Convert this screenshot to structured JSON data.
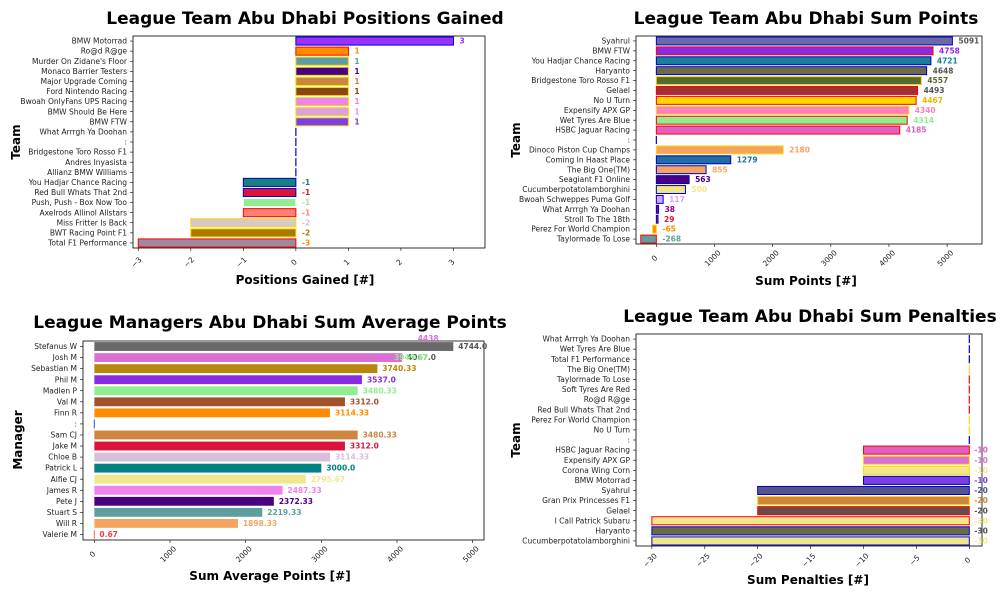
{
  "chart_data": [
    {
      "type": "bar",
      "orientation": "horizontal",
      "title": "League Team Abu Dhabi Positions Gained",
      "xlabel": "Positions Gained [#]",
      "ylabel": "Team",
      "xlim": [
        -3.1,
        3.6
      ],
      "xticks": [
        -3,
        -2,
        -1,
        0,
        1,
        2,
        3
      ],
      "xtick_labels": [
        "−3",
        "−2",
        "−1",
        "0",
        "1",
        "2",
        "3"
      ],
      "categories": [
        "BMW Motorrad",
        "Ro@d R@ge",
        "Murder On Zidane's Floor",
        "Monaco Barrier Testers",
        "Major Upgrade Coming",
        "Ford Nintendo Racing",
        "Bwoah OnlyFans UPS Racing",
        "BMW Should Be Here",
        "BMW FTW",
        "What Arrrgh Ya Doohan",
        ":",
        "Bridgestone Toro Rosso F1",
        "Andres Inyasista",
        "Allianz BMW Williams",
        "You Hadjar Chance Racing",
        "Red Bull Whats That 2nd",
        "Push, Push - Box Now Too",
        "Axelrods Allinol Allstars",
        "Miss Fritter Is Back",
        "BWT Racing Point F1",
        "Total F1 Performance"
      ],
      "values": [
        3,
        1,
        1,
        1,
        1,
        1,
        1,
        1,
        1,
        0,
        0,
        0,
        0,
        0,
        -1,
        -1,
        -1,
        -1,
        -2,
        -2,
        -3
      ],
      "value_labels": [
        "3",
        "1",
        "1",
        "1",
        "1",
        "1",
        "1",
        "1",
        "1",
        "",
        "",
        "",
        "",
        "",
        "-1",
        "-1",
        "-1",
        "-1",
        "-2",
        "-2",
        "-3"
      ],
      "fill_colors": [
        "#9b30ff",
        "#ff8c00",
        "#5f9ea0",
        "#4b0082",
        "#cd853f",
        "#8b4513",
        "#ee82ee",
        "#dda0dd",
        "#7b3fe4",
        "#4169e1",
        "#4169e1",
        "#4169e1",
        "#4169e1",
        "#4169e1",
        "#1a7f7f",
        "#dc143c",
        "#90ee90",
        "#fa8072",
        "#d8c8c8",
        "#a67c00",
        "#9b8aa0"
      ],
      "edge_colors": [
        "#0000cd",
        "#ff0000",
        "#ffd700",
        "#ffd700",
        "#ffd700",
        "#ffd700",
        "#ffd700",
        "#ffd700",
        "#ffd700",
        "#0000cd",
        "#0000cd",
        "#0000cd",
        "#0000cd",
        "#0000cd",
        "#0000cd",
        "#0000cd",
        "#ffffff",
        "#ff0000",
        "#ffd700",
        "#ffd700",
        "#ff0000"
      ],
      "label_colors": [
        "#9b30ff",
        "#ff8c00",
        "#5f9ea0",
        "#4b0082",
        "#cd853f",
        "#8b4513",
        "#ee82ee",
        "#dda0dd",
        "#7b3fe4",
        "#4169e1",
        "#4169e1",
        "#4169e1",
        "#4169e1",
        "#4169e1",
        "#1a7f7f",
        "#dc143c",
        "#90ee90",
        "#fa8072",
        "#d8bfd8",
        "#a67c00",
        "#ff8c00"
      ]
    },
    {
      "type": "bar",
      "orientation": "horizontal",
      "title": "League Team Abu Dhabi Sum Points",
      "xlabel": "Sum Points [#]",
      "ylabel": "Team",
      "xlim": [
        -350,
        5600
      ],
      "xticks": [
        0,
        1000,
        2000,
        3000,
        4000,
        5000
      ],
      "xtick_labels": [
        "0",
        "1000",
        "2000",
        "3000",
        "4000",
        "5000"
      ],
      "categories": [
        "Syahrul",
        "BMW FTW",
        "You Hadjar Chance Racing",
        "Haryanto",
        "Bridgestone Toro Rosso F1",
        "Gelael",
        "No U Turn",
        "Expensify APX GP",
        "Wet Tyres Are Blue",
        "HSBC Jaguar Racing",
        ":",
        "Dinoco Piston Cup Champs",
        "Coming In Haast Place",
        "The Big One(TM)",
        "Seagiant F1 Online",
        "Cucumberpotatolamborghini",
        "Bwoah Schweppes Puma Golf",
        "What Arrrgh Ya Doohan",
        "Stroll To The 18th",
        "Perez For World Champion",
        "Taylormade To Lose"
      ],
      "values": [
        5091,
        4758,
        4721,
        4648,
        4557,
        4493,
        4467,
        4340,
        4314,
        4185,
        0,
        2180,
        1279,
        855,
        563,
        500,
        117,
        38,
        29,
        -65,
        -268
      ],
      "value_labels": [
        "5091",
        "4758",
        "4721",
        "4648",
        "4557",
        "4493",
        "4467",
        "4340",
        "4314",
        "4185",
        "",
        "2180",
        "1279",
        "855",
        "563",
        "500",
        "117",
        "38",
        "29",
        "-65",
        "-268"
      ],
      "fill_colors": [
        "#6a6aa8",
        "#8a2be2",
        "#1a7f9a",
        "#6b6b4a",
        "#556b2f",
        "#a0303a",
        "#ffd700",
        "#ff80bf",
        "#90ee90",
        "#e060c0",
        "#4169e1",
        "#f4a460",
        "#1e6fa0",
        "#f4a460",
        "#4b0082",
        "#f0e68c",
        "#d8a0ff",
        "#8b008b",
        "#dc143c",
        "#ff8c00",
        "#5f9ea0"
      ],
      "edge_colors": [
        "#0000cd",
        "#ff0000",
        "#0000cd",
        "#0000cd",
        "#ffd700",
        "#ff0000",
        "#ff0000",
        "#ffd700",
        "#ff0000",
        "#ff0000",
        "#0000cd",
        "#ffd700",
        "#0000cd",
        "#0000cd",
        "#0000cd",
        "#0000cd",
        "#0000cd",
        "#0000cd",
        "#0000cd",
        "#ffd700",
        "#ff0000"
      ],
      "label_colors": [
        "#555555",
        "#8a2be2",
        "#1a7f9a",
        "#555555",
        "#556b2f",
        "#555555",
        "#e6b800",
        "#ff80bf",
        "#90ee90",
        "#e060c0",
        "#4169e1",
        "#f4a460",
        "#1e6fa0",
        "#f4a460",
        "#4b0082",
        "#f0e68c",
        "#d8a0ff",
        "#8b008b",
        "#dc143c",
        "#ff8c00",
        "#5f9ea0"
      ]
    },
    {
      "type": "bar",
      "orientation": "horizontal",
      "title": "League Managers Abu Dhabi Sum Average Points",
      "xlabel": "Sum Average Points [#]",
      "ylabel": "Manager",
      "xlim": [
        -150,
        5150
      ],
      "xticks": [
        0,
        1000,
        2000,
        3000,
        4000,
        5000
      ],
      "xtick_labels": [
        "0",
        "1000",
        "2000",
        "3000",
        "4000",
        "5000"
      ],
      "categories": [
        "Stefanus W",
        "Josh M",
        "Sebastian M",
        "Phil M",
        "Madlen P",
        "Val M",
        "Finn R",
        ":",
        "Sam CJ",
        "Jake M",
        "Chloe B",
        "Patrick L",
        "Alfie CJ",
        "James R",
        "Pete J",
        "Stuart S",
        "Will R",
        "Valerie M"
      ],
      "values": [
        4744.0,
        4067.0,
        3740.33,
        3537.0,
        3480.33,
        3312.0,
        3114.33,
        0,
        3480.33,
        3312.0,
        3114.33,
        3000.0,
        2795.67,
        2487.33,
        2372.33,
        2219.33,
        1898.33,
        0.67
      ],
      "value_labels": [
        "4744.0",
        "4067.0",
        "3740.33",
        "3537.0",
        "3480.33",
        "3312.0",
        "3114.33",
        "",
        "3480.33",
        "3312.0",
        "3114.33",
        "3000.0",
        "2795.67",
        "2487.33",
        "2372.33",
        "2219.33",
        "1898.33",
        "0.67"
      ],
      "extra_labels": [
        "4438",
        "3949.67"
      ],
      "fill_colors": [
        "#696969",
        "#da70d6",
        "#b8860b",
        "#8a2be2",
        "#90ee90",
        "#a0522d",
        "#ff8c00",
        "#4169e1",
        "#cd853f",
        "#dc143c",
        "#d8bfd8",
        "#008080",
        "#f0e68c",
        "#ee82ee",
        "#4b0082",
        "#5f9ea0",
        "#f4a460",
        "#fa8072"
      ],
      "label_colors": [
        "#555555",
        "#555555",
        "#b8860b",
        "#8a2be2",
        "#90ee90",
        "#a0522d",
        "#ff8c00",
        "#4169e1",
        "#cd853f",
        "#dc143c",
        "#d8bfd8",
        "#008080",
        "#f0e68c",
        "#ee82ee",
        "#4b0082",
        "#5f9ea0",
        "#f4a460",
        "#fa4040"
      ]
    },
    {
      "type": "bar",
      "orientation": "horizontal",
      "title": "League Team Abu Dhabi Sum Penalties",
      "xlabel": "Sum Penalties [#]",
      "ylabel": "Team",
      "xlim": [
        -31.5,
        1.2
      ],
      "xticks": [
        -30,
        -25,
        -20,
        -15,
        -10,
        -5,
        0
      ],
      "xtick_labels": [
        "−30",
        "−25",
        "−20",
        "−15",
        "−10",
        "−5",
        "0"
      ],
      "categories": [
        "What Arrrgh Ya Doohan",
        "Wet Tyres Are Blue",
        "Total F1 Performance",
        "The Big One(TM)",
        "Taylormade To Lose",
        "Soft Tyres Are Red",
        "Ro@d R@ge",
        "Red Bull Whats That 2nd",
        "Perez For World Champion",
        "No U Turn",
        ":",
        "HSBC Jaguar Racing",
        "Expensify APX GP",
        "Corona Wing Corn",
        "BMW Motorrad",
        "Syahrul",
        "Gran Prix Princesses F1",
        "Gelael",
        "I Call Patrick Subaru",
        "Haryanto",
        "Cucumberpotatolamborghini"
      ],
      "values": [
        0,
        0,
        0,
        0,
        0,
        0,
        0,
        0,
        0,
        0,
        0,
        -10,
        -10,
        -10,
        -10,
        -20,
        -20,
        -20,
        -30,
        -30,
        -30
      ],
      "value_labels": [
        "",
        "",
        "",
        "",
        "",
        "",
        "",
        "",
        "",
        "",
        "",
        "-10",
        "-10",
        "-10",
        "-10",
        "-20",
        "-20",
        "-20",
        "-30",
        "-30",
        "-30"
      ],
      "fill_colors": [
        "#4169e1",
        "#4169e1",
        "#4169e1",
        "#ffd700",
        "#ff0000",
        "#ff0000",
        "#ff0000",
        "#ff0000",
        "#ffd700",
        "#ffd700",
        "#4169e1",
        "#e060c0",
        "#da70d6",
        "#f0e68c",
        "#7b3fe4",
        "#55558a",
        "#cd853f",
        "#6b4a4a",
        "#f0e68c",
        "#6b6b4a",
        "#f0e68c"
      ],
      "edge_colors": [
        "#0000cd",
        "#0000cd",
        "#0000cd",
        "#ffd700",
        "#ff0000",
        "#ff0000",
        "#ff0000",
        "#ff0000",
        "#ffd700",
        "#ffd700",
        "#0000cd",
        "#ff0000",
        "#ffd700",
        "#ffd700",
        "#0000cd",
        "#0000cd",
        "#ffd700",
        "#ff0000",
        "#ff0000",
        "#0000cd",
        "#0000cd"
      ],
      "label_colors": [
        "#4169e1",
        "#4169e1",
        "#4169e1",
        "#4169e1",
        "#4169e1",
        "#4169e1",
        "#4169e1",
        "#4169e1",
        "#4169e1",
        "#4169e1",
        "#4169e1",
        "#e060c0",
        "#da70d6",
        "#f0e68c",
        "#7b3fe4",
        "#55558a",
        "#cd853f",
        "#555555",
        "#f0e68c",
        "#555555",
        "#f0e68c"
      ]
    }
  ]
}
